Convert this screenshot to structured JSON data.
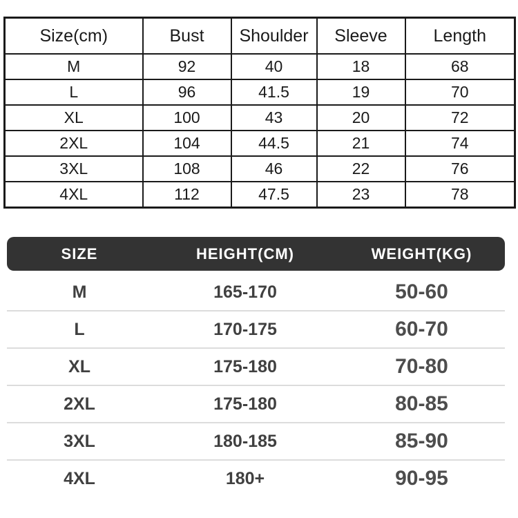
{
  "measurement_table": {
    "headers": [
      "Size(cm)",
      "Bust",
      "Shoulder",
      "Sleeve",
      "Length"
    ],
    "rows": [
      [
        "M",
        "92",
        "40",
        "18",
        "68"
      ],
      [
        "L",
        "96",
        "41.5",
        "19",
        "70"
      ],
      [
        "XL",
        "100",
        "43",
        "20",
        "72"
      ],
      [
        "2XL",
        "104",
        "44.5",
        "21",
        "74"
      ],
      [
        "3XL",
        "108",
        "46",
        "22",
        "76"
      ],
      [
        "4XL",
        "112",
        "47.5",
        "23",
        "78"
      ]
    ]
  },
  "fit_table": {
    "headers": [
      "SIZE",
      "HEIGHT(CM)",
      "WEIGHT(KG)"
    ],
    "rows": [
      [
        "M",
        "165-170",
        "50-60"
      ],
      [
        "L",
        "170-175",
        "60-70"
      ],
      [
        "XL",
        "175-180",
        "70-80"
      ],
      [
        "2XL",
        "175-180",
        "80-85"
      ],
      [
        "3XL",
        "180-185",
        "85-90"
      ],
      [
        "4XL",
        "180+",
        "90-95"
      ]
    ]
  },
  "colors": {
    "table_border": "#1a1a1a",
    "table_text": "#1a1a1a",
    "bar_bg": "#333333",
    "bar_text": "#ffffff",
    "fit_text": "#404040",
    "fit_text_light": "#4d4d4d",
    "separator": "#dcdcdc"
  }
}
